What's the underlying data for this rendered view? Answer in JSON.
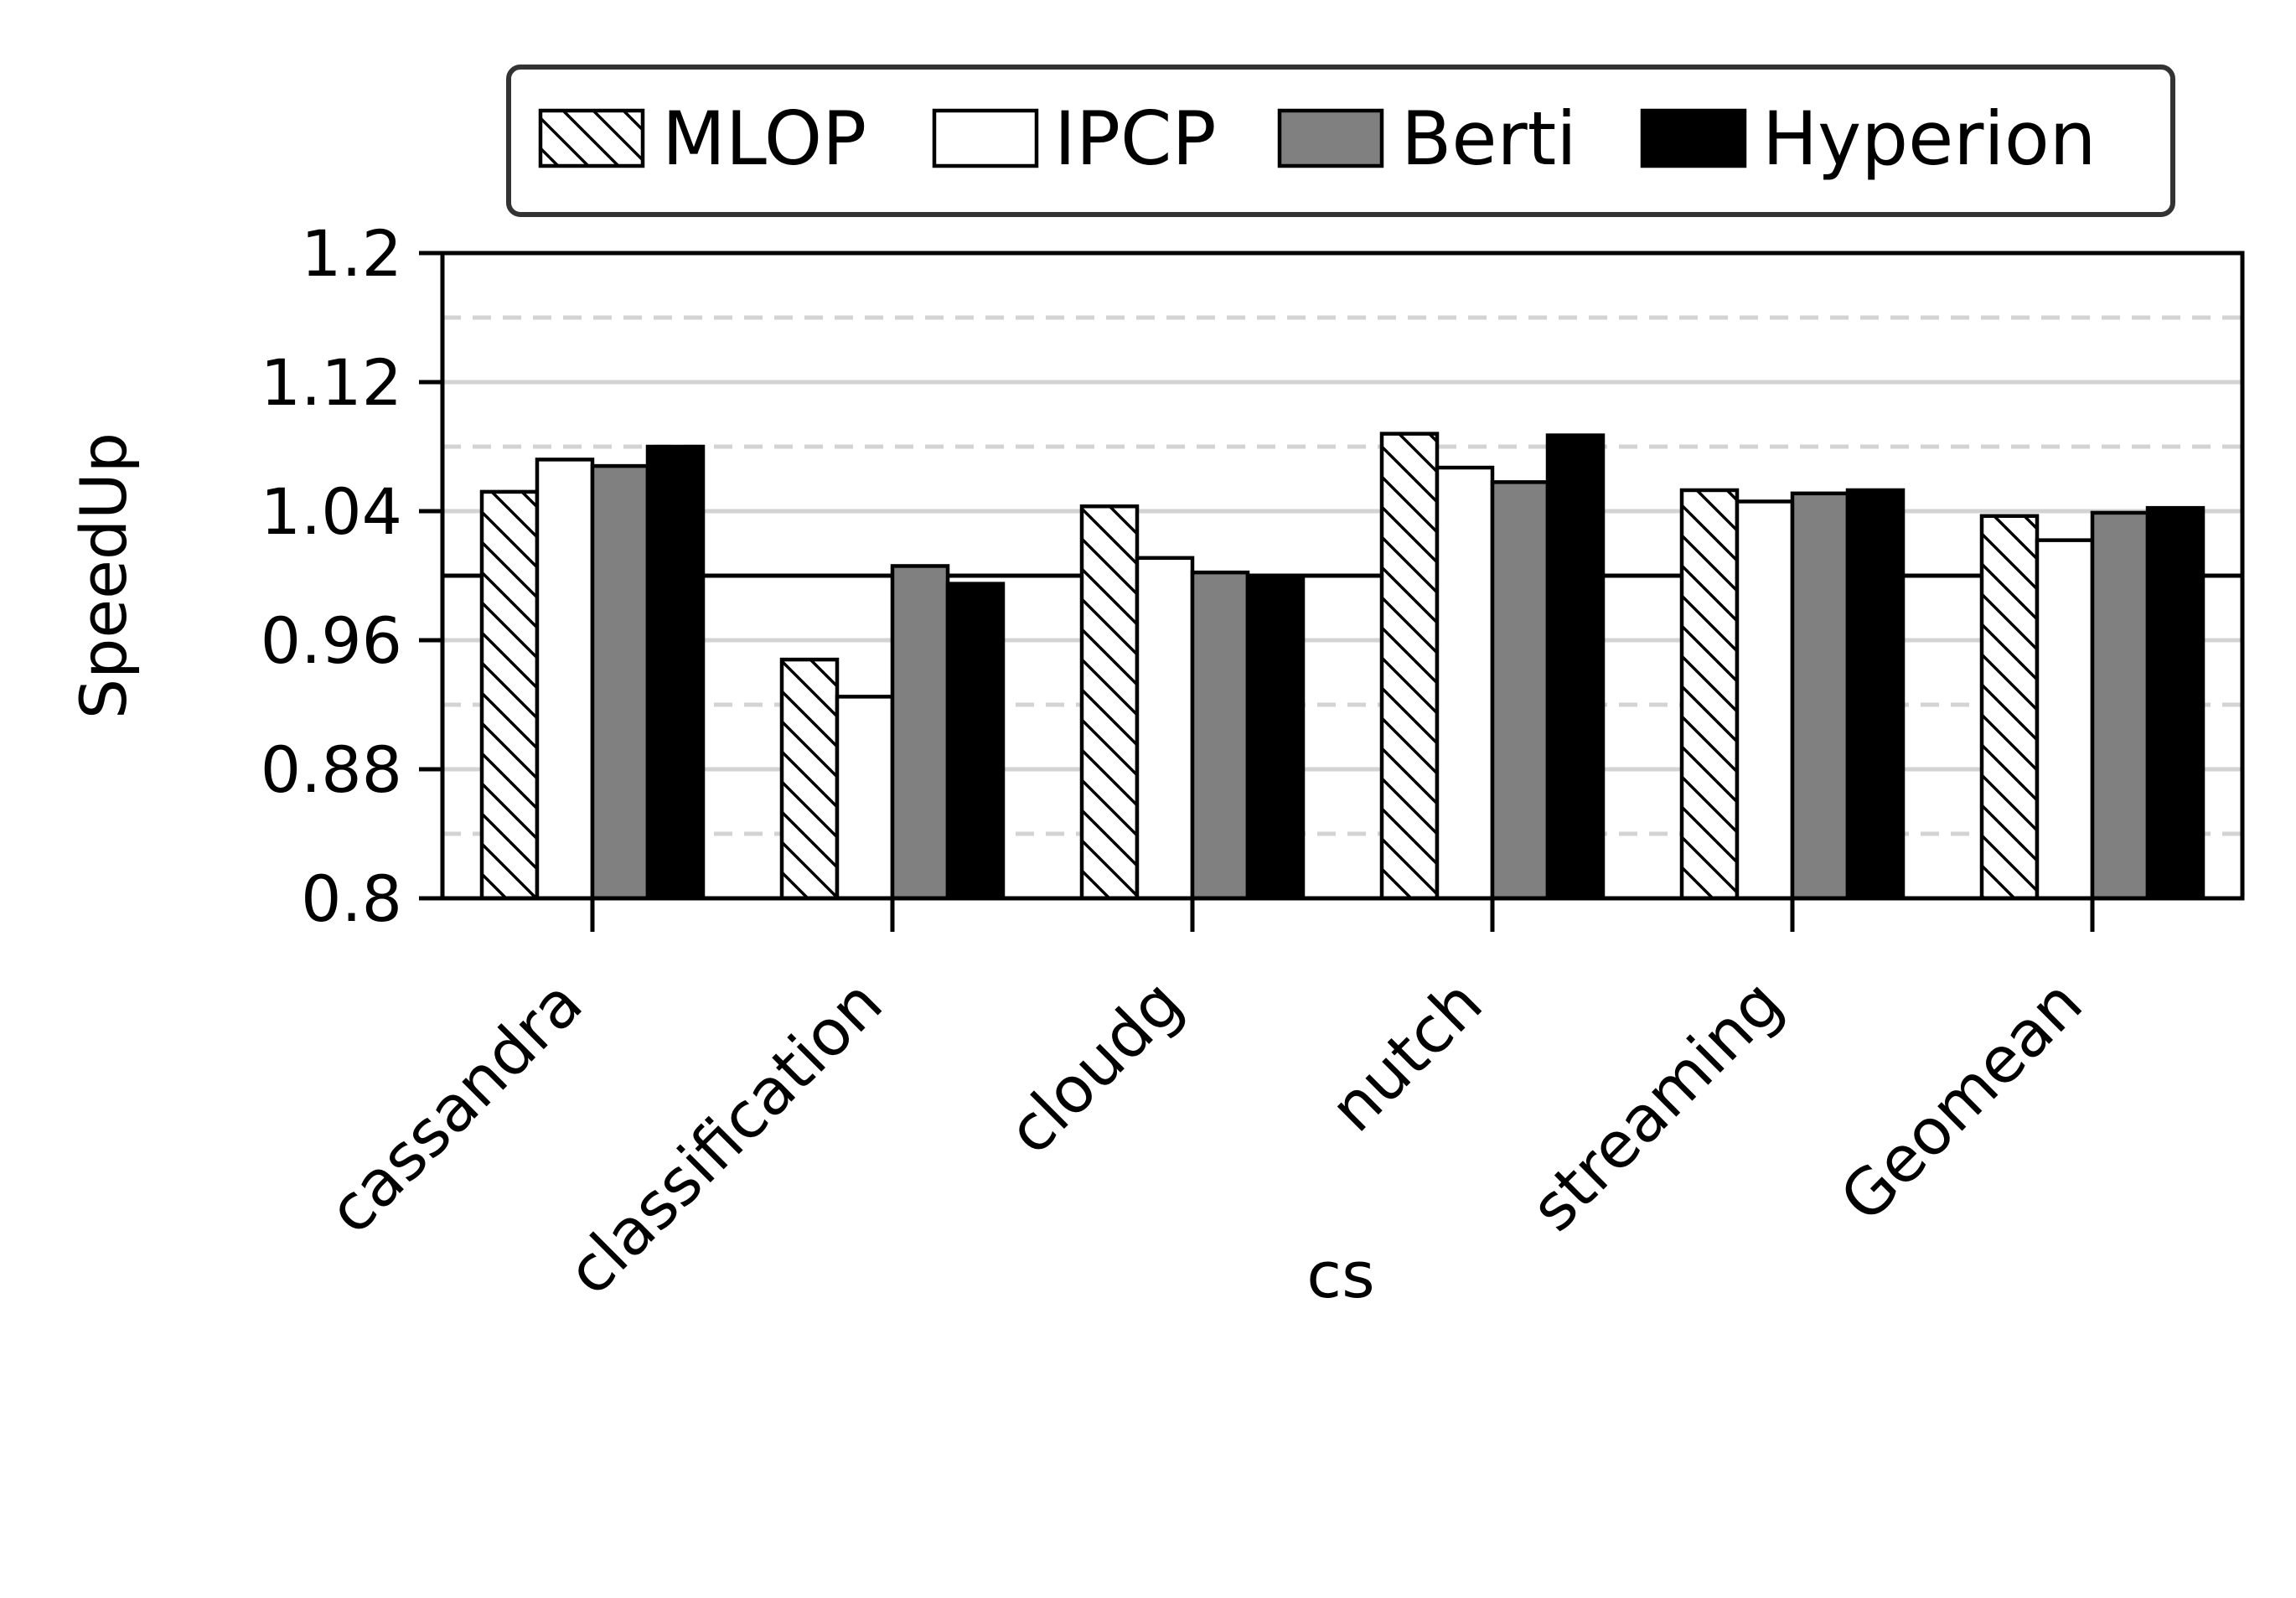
{
  "chart_data": {
    "type": "bar",
    "categories": [
      "cassandra",
      "classification",
      "cloudg",
      "nutch",
      "streaming",
      "Geomean"
    ],
    "series": [
      {
        "name": "MLOP",
        "values": [
          1.052,
          0.948,
          1.043,
          1.088,
          1.053,
          1.037
        ],
        "style": "hatch"
      },
      {
        "name": "IPCP",
        "values": [
          1.072,
          0.925,
          1.011,
          1.067,
          1.046,
          1.022
        ],
        "style": "white"
      },
      {
        "name": "Berti",
        "values": [
          1.068,
          1.006,
          1.002,
          1.058,
          1.051,
          1.039
        ],
        "style": "gray"
      },
      {
        "name": "Hyperion",
        "values": [
          1.08,
          0.995,
          1.0,
          1.087,
          1.053,
          1.042
        ],
        "style": "black"
      }
    ],
    "ylabel": "SpeedUp",
    "xlabel": "",
    "xlabel_extra": "cs",
    "ylim": [
      0.8,
      1.2
    ],
    "yticks": [
      0.8,
      0.88,
      0.96,
      1.04,
      1.12,
      1.2
    ],
    "ytick_labels": [
      "0.8",
      "0.88",
      "0.96",
      "1.04",
      "1.12",
      "1.2"
    ],
    "minor_gridlines": [
      0.84,
      0.92,
      1.0,
      1.08,
      1.16
    ],
    "baseline": 1.0,
    "grid": true,
    "legend_position": "top",
    "colors": {
      "hatch_fill": "#ffffff",
      "white": "#ffffff",
      "gray": "#808080",
      "black": "#000000",
      "grid": "#d3d3d3",
      "edge": "#000000"
    }
  }
}
